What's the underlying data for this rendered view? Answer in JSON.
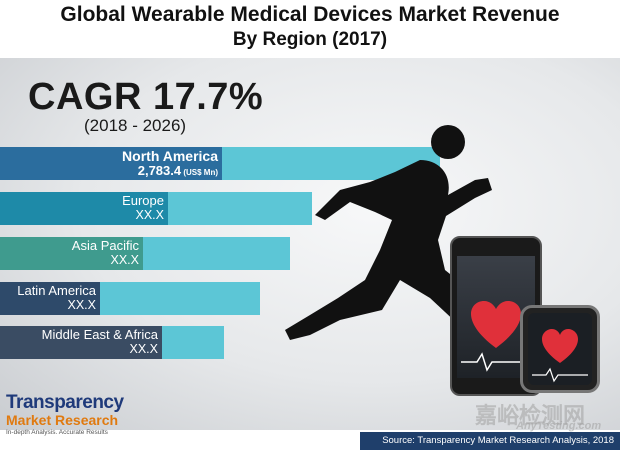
{
  "title": {
    "line1": "Global Wearable Medical Devices Market Revenue",
    "line2": "By Region (2017)"
  },
  "cagr": {
    "value": "CAGR 17.7%",
    "period": "(2018 - 2026)"
  },
  "chart_data": {
    "type": "bar",
    "orientation": "horizontal",
    "title": "Global Wearable Medical Devices Market Revenue By Region (2017)",
    "unit": "(US$ Mn)",
    "categories": [
      "North America",
      "Europe",
      "Asia Pacific",
      "Latin America",
      "Middle East & Africa"
    ],
    "value_labels": [
      "2,783.4",
      "XX.X",
      "XX.X",
      "XX.X",
      "XX.X"
    ],
    "values": [
      2783.4,
      null,
      null,
      null,
      null
    ],
    "relative_bar_lengths": [
      1.0,
      0.71,
      0.66,
      0.59,
      0.51
    ],
    "colors": [
      "#2b6d9e",
      "#1e8aa8",
      "#3f9b8e",
      "#2e4a6a",
      "#3a4c63"
    ],
    "bar_track_color": "#5cc6d6",
    "grid": false,
    "legend": "none"
  },
  "logo": {
    "line1": "Transparency",
    "line2": "Market Research",
    "tagline": "In-depth Analysis. Accurate Results"
  },
  "watermark": {
    "cn": "嘉峪检测网",
    "en": "AnyTesting.com"
  },
  "source": "Source: Transparency Market Research Analysis, 2018"
}
